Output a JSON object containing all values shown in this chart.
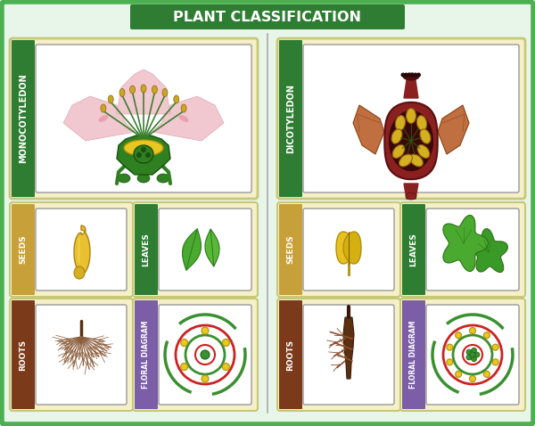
{
  "title": "PLANT CLASSIFICATION",
  "title_bg": "#2e7d32",
  "title_color": "#ffffff",
  "background": "#e8f5e9",
  "outer_border": "#4caf50",
  "divider_color": "#aaaaaa",
  "left_label": "MONOCOTYLEDON",
  "right_label": "DICOTYLEDON",
  "label_bg_green": "#2e7d32",
  "label_bg_gold": "#c8a03a",
  "label_bg_brown": "#7b3a1a",
  "label_bg_purple": "#7b5ea7",
  "label_color": "#ffffff",
  "card_bg": "#f5f0c8",
  "card_border": "#c8c87a",
  "inner_card_bg": "#ffffff",
  "seeds_label": "SEEDS",
  "leaves_label": "LEAVES",
  "roots_label": "ROOTS",
  "floral_label": "FLORAL DIAGRAM"
}
